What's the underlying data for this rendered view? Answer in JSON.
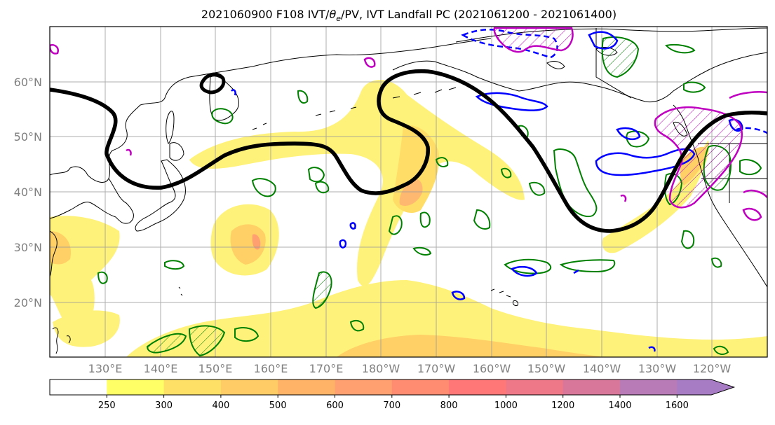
{
  "title": "2021060900 F108 IVT/θe/PV, IVT Landfall PC (2021061200 - 2021061400)",
  "title_parts": {
    "prefix": "2021060900 F108 IVT/",
    "theta": "θ",
    "sub": "e",
    "suffix": "/PV, IVT Landfall PC (2021061200 - 2021061400)"
  },
  "lat_labels": [
    "60°N",
    "50°N",
    "40°N",
    "30°N",
    "20°N"
  ],
  "lon_labels": [
    "130°E",
    "140°E",
    "150°E",
    "160°E",
    "170°E",
    "180°W",
    "170°W",
    "160°W",
    "150°W",
    "140°W",
    "130°W",
    "120°W"
  ],
  "colorbar": {
    "labels": [
      "250",
      "300",
      "400",
      "500",
      "600",
      "700",
      "800",
      "1000",
      "1200",
      "1400",
      "1600"
    ],
    "colors": [
      "#ffffff",
      "#ffff66",
      "#ffe066",
      "#ffcc66",
      "#ffb366",
      "#ffa070",
      "#ff8c70",
      "#ff7777",
      "#ee7788",
      "#d9779a",
      "#b97ab8",
      "#a87cc4"
    ]
  },
  "colors": {
    "ivt_contour": "#000000",
    "theta_e": "#008000",
    "pv": "#0000ff",
    "landfall": "#c000c0",
    "coast": "#000000",
    "grid": "#999999"
  }
}
